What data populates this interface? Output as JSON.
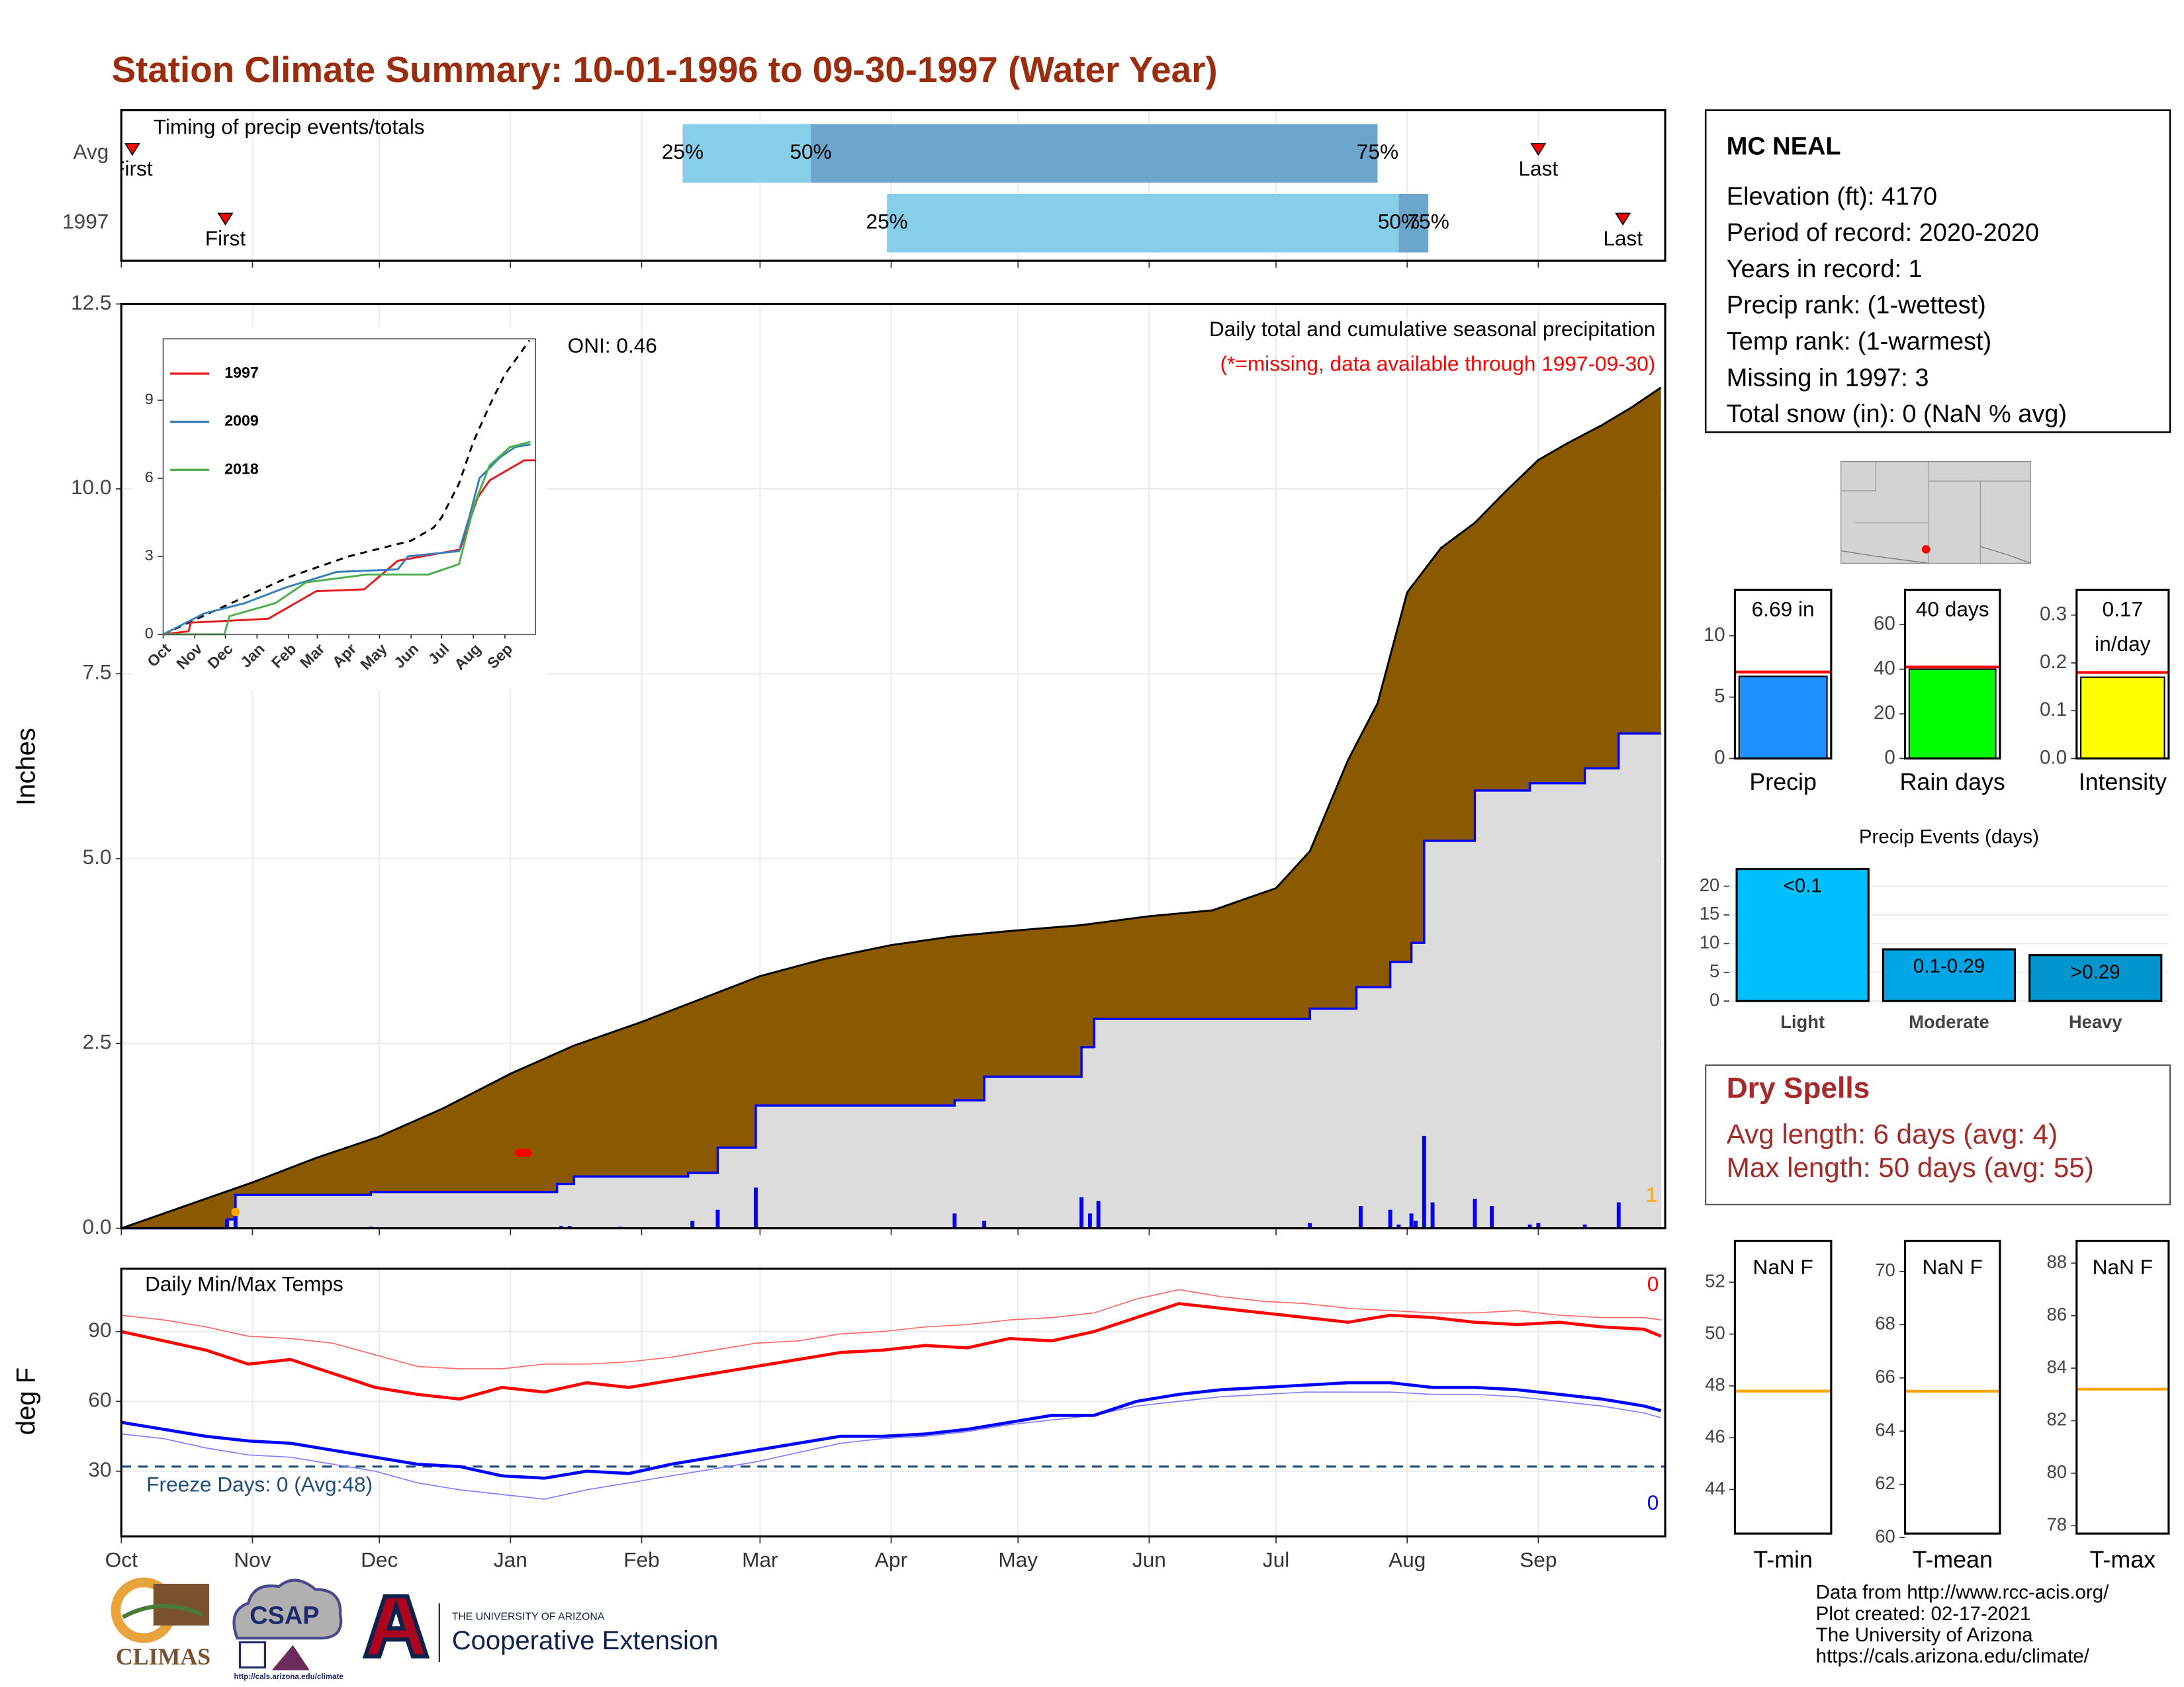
{
  "header": {
    "title": "Station Climate Summary: 10-01-1996 to 09-30-1997 (Water Year)"
  },
  "station": {
    "name": "MC NEAL",
    "lines": [
      "Elevation (ft): 4170",
      "Period of record: 2020-2020",
      "Years in record: 1",
      "Precip rank:  (1-wettest)",
      "Temp rank:  (1-warmest)",
      "Missing in 1997: 3",
      "Total snow (in): 0 (NaN % avg)"
    ]
  },
  "dry_spells": {
    "title": "Dry Spells",
    "lines": [
      "Avg length: 6 days (avg: 4)",
      "Max length: 50 days (avg: 55)"
    ]
  },
  "footer": {
    "logos": [
      "CLIMAS",
      "CSAP",
      "http://cals.arizona.edu/climate",
      "THE UNIVERSITY OF ARIZONA",
      "Cooperative Extension"
    ],
    "credits": [
      "Data from http://www.rcc-acis.org/",
      "Plot created: 02-17-2021",
      "The University of Arizona",
      "https://cals.arizona.edu/climate/"
    ]
  },
  "chart_data": [
    {
      "type": "timeline",
      "title": "Timing of precip events/totals",
      "categories": [
        "Avg",
        "1997"
      ],
      "xlim": [
        0,
        365
      ],
      "xticks": [
        0,
        31,
        61,
        92,
        123,
        151,
        182,
        212,
        243,
        273,
        304,
        335
      ],
      "grid": true,
      "rows": [
        {
          "first": 2.6,
          "q25": 132.7,
          "q50": 163,
          "q75": 297,
          "last": 335
        },
        {
          "first": 24.6,
          "q25": 181,
          "q50": 302,
          "q75": 309,
          "last": 355
        }
      ],
      "labels": {
        "first": "First",
        "q25": "25%",
        "q50": "50%",
        "q75": "75%",
        "last": "Last"
      },
      "colors": {
        "lower": "#87CEEB",
        "upper": "#6CA6CD",
        "marker": "#FF0000"
      }
    },
    {
      "type": "area",
      "title": "Daily total and cumulative seasonal precipitation",
      "subtitle": "(*=missing, data available through 1997-09-30)",
      "annotation": "ONI: 0.46",
      "count_label": "1",
      "ylabel": "Inches",
      "xlim": [
        0,
        365
      ],
      "xticks": [
        0,
        31,
        61,
        92,
        123,
        151,
        182,
        212,
        243,
        273,
        304,
        335
      ],
      "ylim": [
        0,
        12.5
      ],
      "yticks": [
        {
          "value": 0,
          "label": "0.0"
        },
        2.5,
        {
          "value": 5,
          "label": "5.0"
        },
        7.5,
        {
          "value": 10,
          "label": "10.0"
        },
        12.5
      ],
      "grid": true,
      "series": [
        {
          "color": "#8B5A00",
          "x": [
            0,
            15,
            31,
            46,
            61,
            76,
            92,
            107,
            123,
            137,
            151,
            166,
            182,
            197,
            212,
            227,
            243,
            258,
            273,
            281,
            290,
            297,
            304,
            312,
            320,
            327,
            335,
            342,
            350,
            357,
            364
          ],
          "values": [
            0,
            0.3,
            0.62,
            0.95,
            1.24,
            1.62,
            2.09,
            2.47,
            2.79,
            3.1,
            3.41,
            3.64,
            3.83,
            3.95,
            4.03,
            4.1,
            4.22,
            4.3,
            4.6,
            5.1,
            6.33,
            7.1,
            8.6,
            9.2,
            9.54,
            9.95,
            10.39,
            10.62,
            10.86,
            11.1,
            11.37
          ]
        },
        {
          "color": "#0000FF",
          "fill": "#DCDCDC",
          "step": true,
          "x": [
            0,
            25,
            27,
            59,
            103,
            107,
            134,
            141,
            150,
            197,
            204,
            227,
            230,
            281,
            292,
            300,
            305,
            308,
            320,
            333,
            346,
            354,
            364
          ],
          "values": [
            0,
            0.12,
            0.45,
            0.49,
            0.6,
            0.7,
            0.75,
            1.09,
            1.66,
            1.73,
            2.05,
            2.45,
            2.83,
            2.97,
            3.26,
            3.6,
            3.86,
            5.24,
            5.92,
            6.02,
            6.22,
            6.69,
            6.69
          ]
        }
      ],
      "bars": {
        "color": "#0000FF",
        "x": [
          25,
          27,
          59,
          104,
          106,
          118,
          135,
          141,
          150,
          197,
          204,
          227,
          229,
          231,
          281,
          293,
          300,
          302,
          305,
          306,
          308,
          310,
          320,
          324,
          333,
          335,
          346,
          354
        ],
        "values": [
          0.12,
          0.25,
          0.02,
          0.03,
          0.03,
          0.02,
          0.1,
          0.25,
          0.55,
          0.2,
          0.1,
          0.42,
          0.2,
          0.37,
          0.07,
          0.3,
          0.25,
          0.05,
          0.2,
          0.1,
          1.25,
          0.35,
          0.4,
          0.3,
          0.05,
          0.07,
          0.05,
          0.35
        ]
      },
      "points": [
        {
          "color": "#FF0000",
          "x": [
            94,
            95,
            96
          ],
          "values": [
            1.02,
            1.02,
            1.02
          ]
        },
        {
          "color": "#FFA500",
          "x": [
            27
          ],
          "values": [
            0.22
          ]
        }
      ],
      "count_color": "#FFA500"
    },
    {
      "type": "line",
      "xlim": [
        0,
        365
      ],
      "ylim": [
        0,
        11.36
      ],
      "yticks": [
        0,
        3,
        6,
        9
      ],
      "xticks": [
        {
          "value": 0,
          "label": "Oct"
        },
        {
          "value": 31,
          "label": "Nov"
        },
        {
          "value": 61,
          "label": "Dec"
        },
        {
          "value": 92,
          "label": "Jan"
        },
        {
          "value": 123,
          "label": "Feb"
        },
        {
          "value": 151,
          "label": "Mar"
        },
        {
          "value": 182,
          "label": "Apr"
        },
        {
          "value": 212,
          "label": "May"
        },
        {
          "value": 243,
          "label": "Jun"
        },
        {
          "value": 273,
          "label": "Jul"
        },
        {
          "value": 304,
          "label": "Aug"
        },
        {
          "value": 335,
          "label": "Sep"
        }
      ],
      "series": [
        {
          "color": "#000000",
          "dash": true,
          "x": [
            0,
            61,
            123,
            182,
            243,
            265,
            273,
            290,
            304,
            320,
            335,
            350,
            359
          ],
          "values": [
            0,
            1.1,
            2.2,
            3.0,
            3.6,
            4.1,
            4.5,
            5.8,
            7.4,
            8.8,
            10.0,
            10.8,
            11.3
          ]
        },
        {
          "name": "1997",
          "color": "#E41A1C",
          "x": [
            0,
            25,
            27,
            103,
            150,
            197,
            230,
            291,
            308,
            320,
            354,
            365
          ],
          "values": [
            0,
            0.12,
            0.45,
            0.6,
            1.66,
            1.73,
            2.83,
            3.26,
            5.24,
            5.92,
            6.69,
            6.69
          ]
        },
        {
          "name": "2009",
          "color": "#377EB8",
          "x": [
            0,
            40,
            80,
            120,
            170,
            230,
            240,
            290,
            300,
            310,
            330,
            345,
            360
          ],
          "values": [
            0,
            0.8,
            1.2,
            1.8,
            2.4,
            2.5,
            3.0,
            3.2,
            4.5,
            6.0,
            6.8,
            7.2,
            7.3
          ]
        },
        {
          "name": "2018",
          "color": "#4DAF4A",
          "x": [
            0,
            60,
            65,
            110,
            140,
            200,
            260,
            290,
            305,
            320,
            340,
            360
          ],
          "values": [
            0,
            0,
            0.7,
            1.2,
            2.0,
            2.3,
            2.3,
            2.7,
            5.0,
            6.5,
            7.2,
            7.4
          ]
        }
      ]
    },
    {
      "type": "line",
      "title": "Daily Min/Max Temps",
      "ylabel": "deg F",
      "xlim": [
        0,
        365
      ],
      "ylim": [
        2,
        117
      ],
      "yticks": [
        30,
        60,
        90
      ],
      "grid": true,
      "xticks": [
        {
          "value": 0,
          "label": "Oct"
        },
        {
          "value": 31,
          "label": "Nov"
        },
        {
          "value": 61,
          "label": "Dec"
        },
        {
          "value": 92,
          "label": "Jan"
        },
        {
          "value": 123,
          "label": "Feb"
        },
        {
          "value": 151,
          "label": "Mar"
        },
        {
          "value": 182,
          "label": "Apr"
        },
        {
          "value": 212,
          "label": "May"
        },
        {
          "value": 243,
          "label": "Jun"
        },
        {
          "value": 273,
          "label": "Jul"
        },
        {
          "value": 304,
          "label": "Aug"
        },
        {
          "value": 335,
          "label": "Sep"
        }
      ],
      "x": [
        0,
        10,
        20,
        30,
        40,
        50,
        60,
        70,
        80,
        90,
        100,
        110,
        120,
        130,
        140,
        150,
        160,
        170,
        180,
        190,
        200,
        210,
        220,
        230,
        240,
        250,
        260,
        270,
        280,
        290,
        300,
        310,
        320,
        330,
        340,
        350,
        360,
        364
      ],
      "series": [
        {
          "color": "#FF6A6A",
          "width": 0.8,
          "values": [
            97,
            95,
            92,
            88,
            87,
            85,
            80,
            75,
            74,
            74,
            76,
            76,
            77,
            79,
            82,
            85,
            86,
            89,
            90,
            92,
            93,
            95,
            96,
            98,
            104,
            108,
            105,
            103,
            102,
            100,
            99,
            98,
            98,
            99,
            97,
            96,
            96,
            95
          ]
        },
        {
          "color": "#8080FF",
          "width": 0.8,
          "values": [
            46,
            44,
            40,
            37,
            36,
            33,
            30,
            25,
            22,
            20,
            18,
            22,
            25,
            28,
            31,
            34,
            38,
            42,
            44,
            45,
            47,
            50,
            52,
            54,
            58,
            60,
            62,
            63,
            64,
            64,
            64,
            63,
            63,
            62,
            60,
            58,
            55,
            53
          ]
        },
        {
          "color": "#FF0000",
          "width": 2.2,
          "values": [
            90,
            86,
            82,
            76,
            78,
            72,
            66,
            63,
            61,
            66,
            64,
            68,
            66,
            69,
            72,
            75,
            78,
            81,
            82,
            84,
            83,
            87,
            86,
            90,
            96,
            102,
            100,
            98,
            96,
            94,
            97,
            96,
            94,
            93,
            94,
            92,
            91,
            88
          ]
        },
        {
          "color": "#0000FF",
          "width": 2.2,
          "values": [
            51,
            48,
            45,
            43,
            42,
            39,
            36,
            33,
            32,
            28,
            27,
            30,
            29,
            33,
            36,
            39,
            42,
            45,
            45,
            46,
            48,
            51,
            54,
            54,
            60,
            63,
            65,
            66,
            67,
            68,
            68,
            66,
            66,
            65,
            63,
            61,
            58,
            56
          ]
        }
      ],
      "freeze": {
        "value": 32,
        "label": "Freeze Days: 0 (Avg:48)",
        "color": "#1F4E79"
      },
      "annotations": [
        {
          "text": "0",
          "color": "#FF0000"
        },
        {
          "text": "0",
          "color": "#0000FF"
        }
      ]
    },
    {
      "type": "bar",
      "categories": [
        "Precip"
      ],
      "values": [
        6.69
      ],
      "value_labels": [
        "6.69 in"
      ],
      "average": 7.05,
      "color": "#1E90FF",
      "avg_color": "#FF0000",
      "ylim": [
        0,
        13.75
      ],
      "yticks": [
        0,
        5,
        10
      ]
    },
    {
      "type": "bar",
      "categories": [
        "Rain days"
      ],
      "values": [
        40
      ],
      "value_labels": [
        "40 days"
      ],
      "average": 41,
      "color": "#00FF00",
      "avg_color": "#FF0000",
      "ylim": [
        0,
        75.6
      ],
      "yticks": [
        0,
        20,
        40,
        60
      ]
    },
    {
      "type": "bar",
      "categories": [
        "Intensity"
      ],
      "values": [
        0.17
      ],
      "value_labels": [
        "0.17 in/day"
      ],
      "average": 0.18,
      "color": "#FFFF00",
      "avg_color": "#FF0000",
      "ylim": [
        0,
        0.353
      ],
      "yticks": [
        {
          "value": 0,
          "label": "0.0"
        },
        0.1,
        0.2,
        0.3
      ]
    },
    {
      "type": "events",
      "title": "Precip Events (days)",
      "categories": [
        "Light",
        "Moderate",
        "Heavy"
      ],
      "bar_labels": [
        "<0.1",
        "0.1-0.29",
        ">0.29"
      ],
      "values": [
        23,
        9,
        8
      ],
      "colors": [
        "#00BFFF",
        "#00A5E6",
        "#0095CC"
      ],
      "ylim": [
        0,
        23.8
      ],
      "yticks": [
        0,
        5,
        10,
        15,
        20
      ],
      "grid": true
    },
    {
      "type": "level",
      "categories": [
        "T-min"
      ],
      "value_label": "NaN F",
      "average": 47.8,
      "avg_color": "#FFA500",
      "ylim": [
        42.3,
        53.6
      ],
      "yticks": [
        44,
        46,
        48,
        50,
        52
      ]
    },
    {
      "type": "level",
      "categories": [
        "T-mean"
      ],
      "value_label": "NaN F",
      "average": 65.5,
      "avg_color": "#FFA500",
      "ylim": [
        60.15,
        71.15
      ],
      "yticks": [
        60,
        62,
        64,
        66,
        68,
        70
      ]
    },
    {
      "type": "level",
      "categories": [
        "T-max"
      ],
      "value_label": "NaN F",
      "average": 83.2,
      "avg_color": "#FFA500",
      "ylim": [
        77.7,
        88.85
      ],
      "yticks": [
        78,
        80,
        82,
        84,
        86,
        88
      ]
    }
  ]
}
